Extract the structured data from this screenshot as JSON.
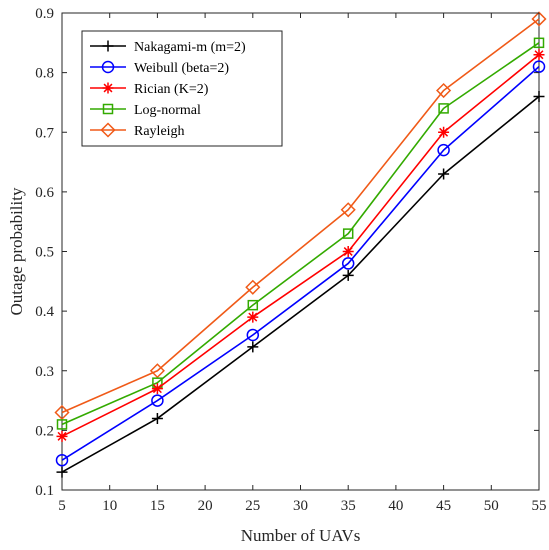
{
  "chart_data": {
    "type": "line",
    "title": "",
    "xlabel": "Number of UAVs",
    "ylabel": "Outage probability",
    "xlim": [
      5,
      55
    ],
    "ylim": [
      0.1,
      0.9
    ],
    "x_ticks": [
      5,
      10,
      15,
      20,
      25,
      30,
      35,
      40,
      45,
      50,
      55
    ],
    "y_ticks": [
      0.1,
      0.2,
      0.3,
      0.4,
      0.5,
      0.6,
      0.7,
      0.8,
      0.9
    ],
    "grid": false,
    "legend_position": "top-left",
    "x": [
      5,
      15,
      25,
      35,
      45,
      55
    ],
    "series": [
      {
        "name": "Nakagami-m (m=2)",
        "color": "#000000",
        "marker": "plus",
        "values": [
          0.13,
          0.22,
          0.34,
          0.46,
          0.63,
          0.76
        ]
      },
      {
        "name": "Weibull (beta=2)",
        "color": "#0000ff",
        "marker": "circle",
        "values": [
          0.15,
          0.25,
          0.36,
          0.48,
          0.67,
          0.81
        ]
      },
      {
        "name": "Rician (K=2)",
        "color": "#ff0000",
        "marker": "asterisk",
        "values": [
          0.19,
          0.27,
          0.39,
          0.5,
          0.7,
          0.83
        ]
      },
      {
        "name": "Log-normal",
        "color": "#33aa00",
        "marker": "square",
        "values": [
          0.21,
          0.28,
          0.41,
          0.53,
          0.74,
          0.85
        ]
      },
      {
        "name": "Rayleigh",
        "color": "#f05a18",
        "marker": "diamond",
        "values": [
          0.23,
          0.3,
          0.44,
          0.57,
          0.77,
          0.89
        ]
      }
    ]
  }
}
